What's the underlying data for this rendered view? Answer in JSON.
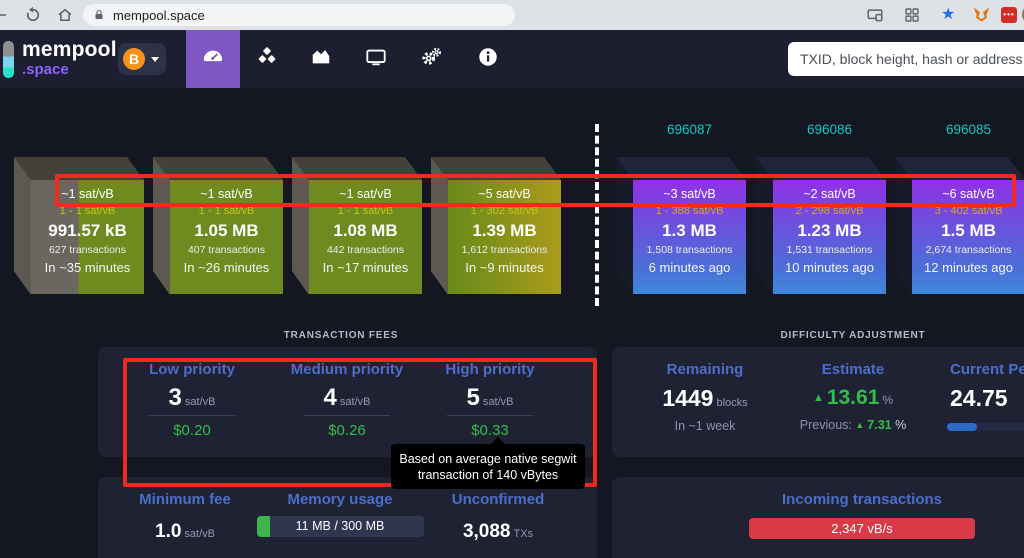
{
  "chrome": {
    "url": "mempool.space"
  },
  "navbar": {
    "brand_top": "mempool",
    "brand_bottom": ".space",
    "currency_symbol": "B",
    "search_placeholder": "TXID, block height, hash or address",
    "icons": [
      "gauge",
      "mining-cubes",
      "area-chart",
      "tv",
      "gears",
      "info"
    ]
  },
  "mempool_blocks": [
    {
      "median_fee": "~1 sat/vB",
      "fee_range": "1 - 1 sat/vB",
      "size": "991.57 kB",
      "tx_count": "627 transactions",
      "time": "In ~35 minutes",
      "style": "fill-partial"
    },
    {
      "median_fee": "~1 sat/vB",
      "fee_range": "1 - 1 sat/vB",
      "size": "1.05 MB",
      "tx_count": "407 transactions",
      "time": "In ~26 minutes",
      "style": "fill-green"
    },
    {
      "median_fee": "~1 sat/vB",
      "fee_range": "1 - 1 sat/vB",
      "size": "1.08 MB",
      "tx_count": "442 transactions",
      "time": "In ~17 minutes",
      "style": "fill-green"
    },
    {
      "median_fee": "~5 sat/vB",
      "fee_range": "1 - 302 sat/vB",
      "size": "1.39 MB",
      "tx_count": "1,612 transactions",
      "time": "In ~9 minutes",
      "style": "fill-green-yellow"
    }
  ],
  "mined_blocks": [
    {
      "height": "696087",
      "median_fee": "~3 sat/vB",
      "fee_range": "1 - 388 sat/vB",
      "size": "1.3 MB",
      "tx_count": "1,508 transactions",
      "time": "6 minutes ago"
    },
    {
      "height": "696086",
      "median_fee": "~2 sat/vB",
      "fee_range": "2 - 298 sat/vB",
      "size": "1.23 MB",
      "tx_count": "1,531 transactions",
      "time": "10 minutes ago"
    },
    {
      "height": "696085",
      "median_fee": "~6 sat/vB",
      "fee_range": "3 - 402 sat/vB",
      "size": "1.5 MB",
      "tx_count": "2,674 transactions",
      "time": "12 minutes ago"
    }
  ],
  "fees": {
    "title": "TRANSACTION FEES",
    "items": [
      {
        "label": "Low priority",
        "value": "3",
        "unit": "sat/vB",
        "usd": "$0.20"
      },
      {
        "label": "Medium priority",
        "value": "4",
        "unit": "sat/vB",
        "usd": "$0.26"
      },
      {
        "label": "High priority",
        "value": "5",
        "unit": "sat/vB",
        "usd": "$0.33"
      }
    ],
    "tooltip_line1": "Based on average native segwit",
    "tooltip_line2": "transaction of 140 vBytes"
  },
  "difficulty": {
    "title": "DIFFICULTY ADJUSTMENT",
    "remaining": {
      "label": "Remaining",
      "value": "1449",
      "unit": "blocks",
      "sub": "In ~1 week"
    },
    "estimate": {
      "label": "Estimate",
      "arrow": "▲",
      "value": "13.61",
      "unit": "%",
      "previous_label": "Previous:",
      "previous_arrow": "▲",
      "previous_value": "7.31",
      "previous_unit": "%"
    },
    "current": {
      "label": "Current Pe",
      "value": "24.75"
    }
  },
  "mempool_stats": {
    "min_fee": {
      "label": "Minimum fee",
      "value": "1.0",
      "unit": "sat/vB"
    },
    "memory": {
      "label": "Memory usage",
      "value": "11 MB / 300 MB"
    },
    "unconfirmed": {
      "label": "Unconfirmed",
      "value": "3,088",
      "unit": "TXs"
    }
  },
  "incoming": {
    "label": "Incoming transactions",
    "value": "2,347 vB/s"
  },
  "colors": {
    "accent_purple": "#7e57c2",
    "brand_purple": "#8a63f8",
    "link_blue": "#4c6ec9",
    "green": "#33bd4b",
    "annotation_red": "#ee2b1c",
    "mined_teal": "#1ac7c2",
    "bitcoin_orange": "#f7931a",
    "incoming_red": "#dc3948",
    "block_green": "#6d8b1e"
  }
}
